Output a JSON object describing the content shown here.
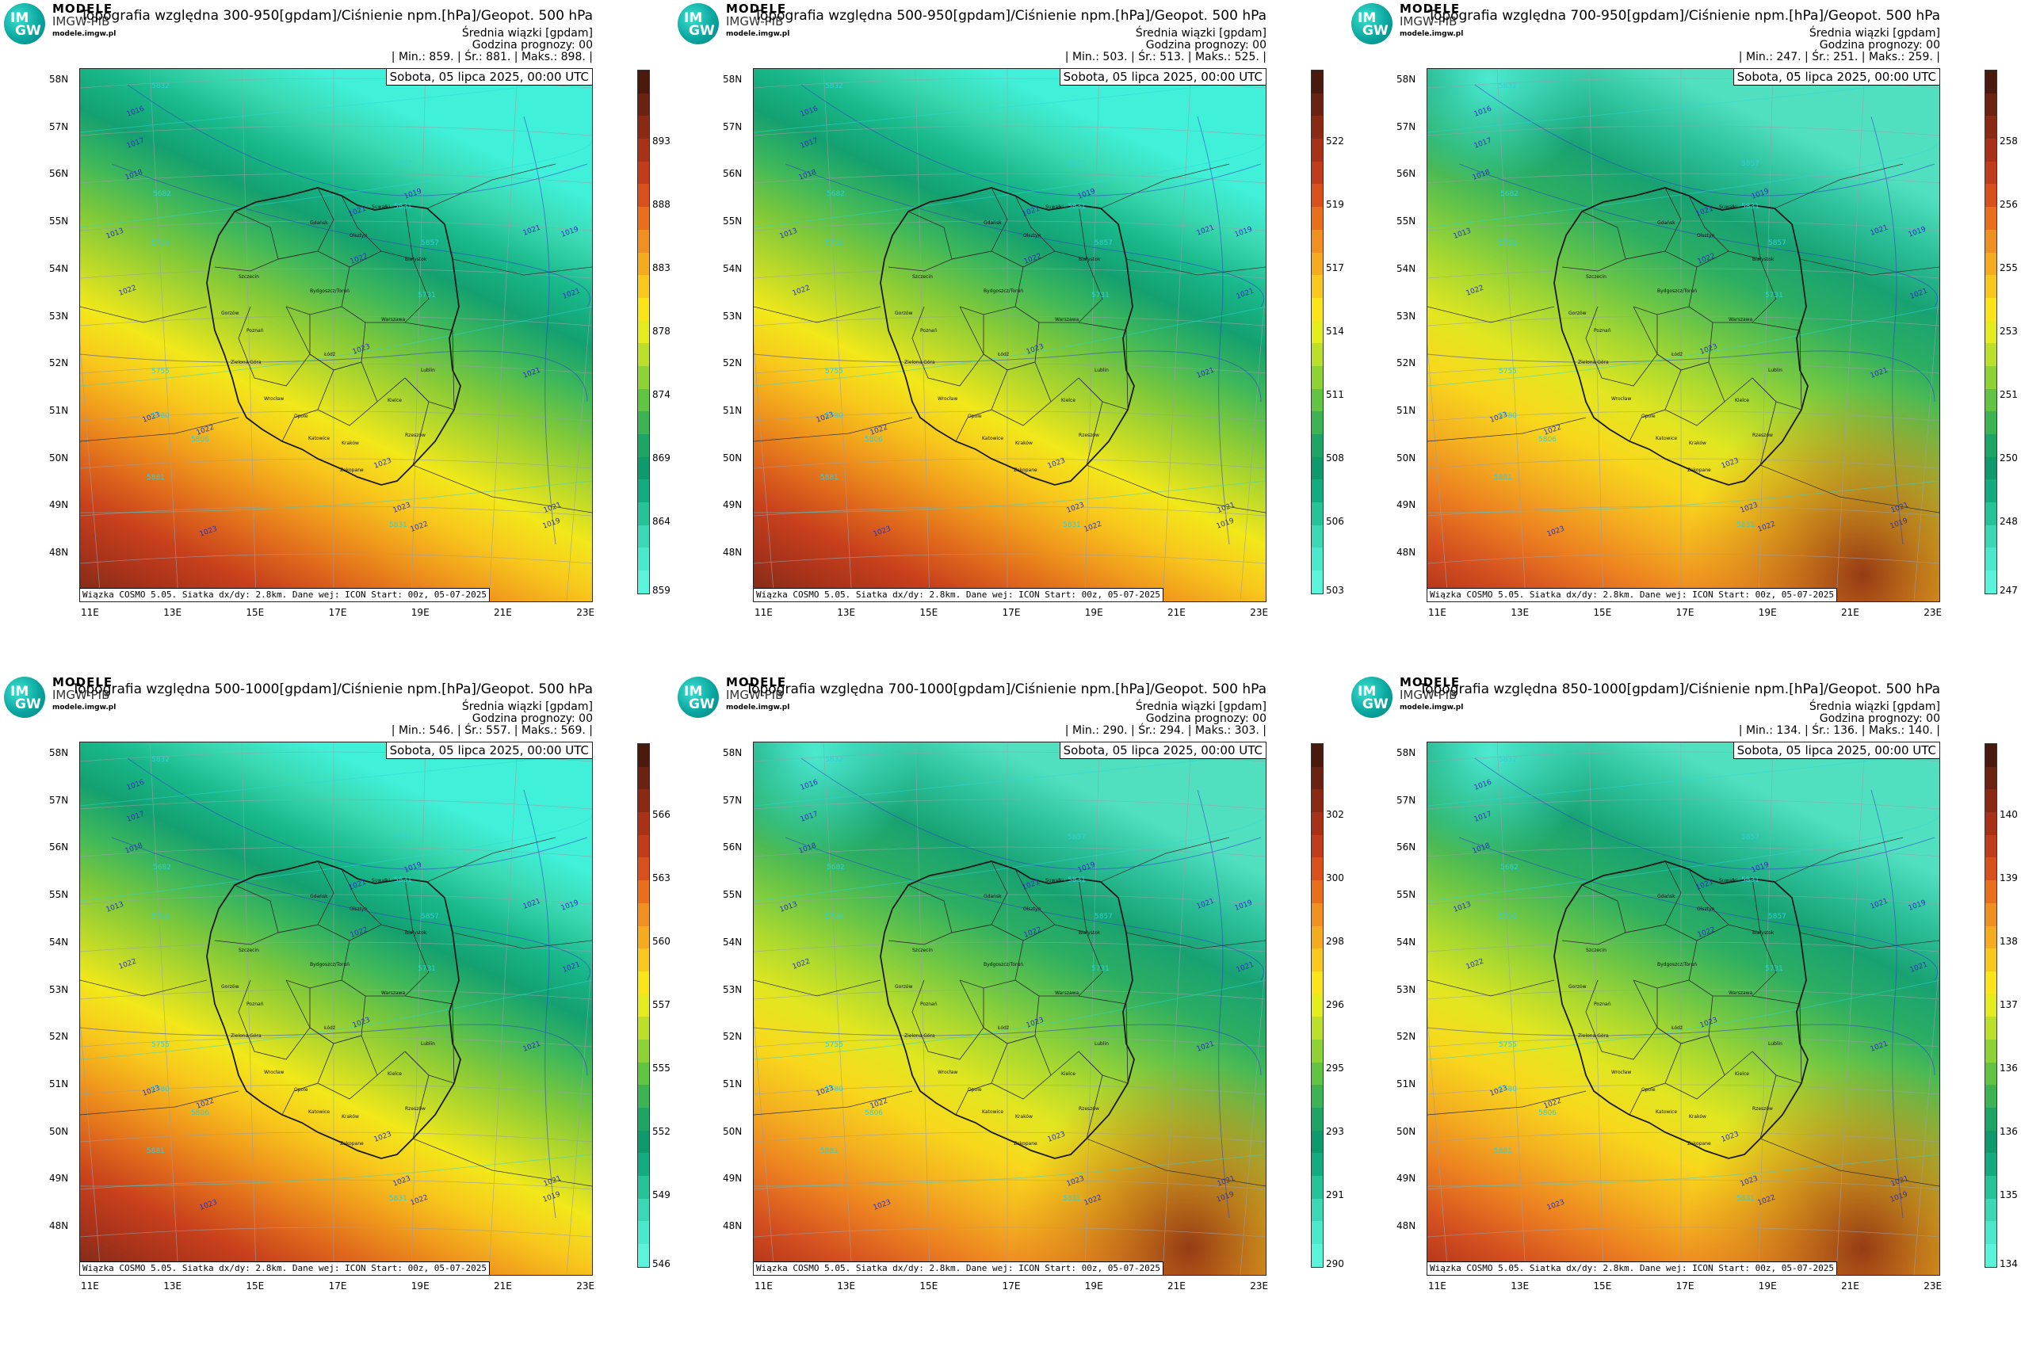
{
  "brand": {
    "logo_top": "IM",
    "logo_bottom": "GW",
    "name": "MODELE",
    "sub": "IMGW-PIB",
    "url": "modele.imgw.pl"
  },
  "common": {
    "subtitle": "Średnia wiązki [gpdam]",
    "forecast_hour": "Godzina prognozy: 00",
    "date": "Sobota, 05 lipca 2025, 00:00 UTC",
    "footer": "Wiązka COSMO 5.05. Siatka dx/dy: 2.8km. Dane wej: ICON Start: 00z, 05-07-2025",
    "lat_labels": [
      "58N",
      "57N",
      "56N",
      "55N",
      "54N",
      "53N",
      "52N",
      "51N",
      "50N",
      "49N",
      "48N"
    ],
    "lon_labels": [
      "11E",
      "13E",
      "15E",
      "17E",
      "19E",
      "21E",
      "23E"
    ]
  },
  "panels": [
    {
      "title": "Topografia względna 300-950[gpdam]/Ciśnienie npm.[hPa]/Geopot. 500 hPa",
      "stats": "| Min.:   859. | Śr.:   881. | Maks.:   898. |",
      "colorbar": [
        "893",
        "888",
        "883",
        "878",
        "874",
        "869",
        "864",
        "859"
      ],
      "pattern": "a"
    },
    {
      "title": "Topografia względna 500-950[gpdam]/Ciśnienie npm.[hPa]/Geopot. 500 hPa",
      "stats": "| Min.:   503. | Śr.:   513. | Maks.:   525. |",
      "colorbar": [
        "522",
        "519",
        "517",
        "514",
        "511",
        "508",
        "506",
        "503"
      ],
      "pattern": "a"
    },
    {
      "title": "Topografia względna 700-950[gpdam]/Ciśnienie npm.[hPa]/Geopot. 500 hPa",
      "stats": "| Min.:   247. | Śr.:   251. | Maks.:   259. |",
      "colorbar": [
        "258",
        "256",
        "255",
        "253",
        "251",
        "250",
        "248",
        "247"
      ],
      "pattern": "b"
    },
    {
      "title": "Topografia względna 500-1000[gpdam]/Ciśnienie npm.[hPa]/Geopot. 500 hPa",
      "stats": "| Min.:   546. | Śr.:   557. | Maks.:   569. |",
      "colorbar": [
        "566",
        "563",
        "560",
        "557",
        "555",
        "552",
        "549",
        "546"
      ],
      "pattern": "a"
    },
    {
      "title": "Topografia względna 700-1000[gpdam]/Ciśnienie npm.[hPa]/Geopot. 500 hPa",
      "stats": "| Min.:   290. | Śr.:   294. | Maks.:   303. |",
      "colorbar": [
        "302",
        "300",
        "298",
        "296",
        "295",
        "293",
        "291",
        "290"
      ],
      "pattern": "b"
    },
    {
      "title": "Topografia względna 850-1000[gpdam]/Ciśnienie npm.[hPa]/Geopot. 500 hPa",
      "stats": "| Min.:   134. | Śr.:   136. | Maks.:   140. |",
      "colorbar": [
        "140",
        "139",
        "138",
        "137",
        "136",
        "136",
        "135",
        "134"
      ],
      "pattern": "b"
    }
  ],
  "map_labels": {
    "cities": [
      "Gdańsk",
      "Olsztyn",
      "Suwałki",
      "Białystok",
      "Szczecin",
      "Bydgoszcz/Toruń",
      "Gorzów",
      "Poznań",
      "Warszawa",
      "Zielona Góra",
      "Łódź",
      "Lublin",
      "Wrocław",
      "Opole",
      "Kielce",
      "Katowice",
      "Kraków",
      "Rzeszów",
      "Zakopane"
    ],
    "isobars": [
      "1016",
      "1017",
      "1018",
      "1019",
      "1021",
      "1022",
      "1023",
      "1013",
      "1021",
      "1022",
      "1023",
      "1019",
      "1021",
      "1021",
      "1022",
      "1023",
      "1023",
      "1022",
      "1021",
      "1019",
      "1023"
    ],
    "geopot": [
      "5832",
      "5857",
      "5682",
      "5706",
      "5731",
      "5755",
      "5780",
      "5806",
      "5831",
      "5857",
      "5881",
      "5831"
    ]
  },
  "colors": {
    "pattern_a": [
      "#7a2a18",
      "#a7321a",
      "#c8401c",
      "#e06a1c",
      "#f09a1c",
      "#f8c81c",
      "#f2e81a",
      "#b8d82a",
      "#7ec83a",
      "#3fb85a",
      "#14a070",
      "#18b88a",
      "#3ad8b0",
      "#40f0d8"
    ],
    "pattern_b": [
      "#b03018",
      "#d45020",
      "#ec8020",
      "#f4b020",
      "#f8d81c",
      "#e2e620",
      "#a8d830",
      "#66c448",
      "#2cae62",
      "#18a272",
      "#2cc09a",
      "#50e0c0"
    ],
    "colorbar": [
      "#4a1a0e",
      "#6a2212",
      "#8a2a14",
      "#a83218",
      "#c03c1a",
      "#d8501c",
      "#e8701c",
      "#f09020",
      "#f4ac1e",
      "#f8c81c",
      "#fae41a",
      "#e4ec20",
      "#bce02a",
      "#8ed236",
      "#62c444",
      "#3cb454",
      "#1ea464",
      "#0e9a6c",
      "#12ac80",
      "#24c498",
      "#3ad8b4",
      "#4ae8cc",
      "#5af4dc"
    ]
  }
}
